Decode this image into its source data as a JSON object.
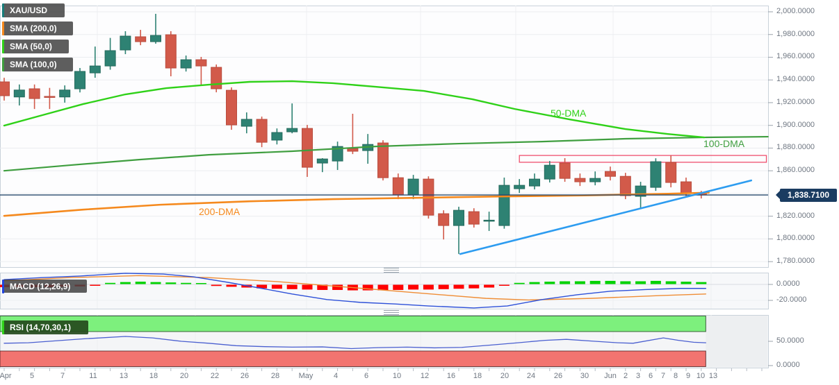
{
  "symbol": "XAU/USD",
  "legend": {
    "symbol_badge": "XAU/USD",
    "sma200_badge": "SMA (200,0)",
    "sma50_badge": "SMA (50,0)",
    "sma100_badge": "SMA (100,0)",
    "macd_badge": "MACD (12,26,9)",
    "rsi_badge": "RSI (14,70,30,1)"
  },
  "annotations": {
    "sma50_label": "50-DMA",
    "sma100_label": "100-DMA",
    "sma200_label": "200-DMA"
  },
  "price_badge": "1,838.7100",
  "colors": {
    "candle_up": "#2e8273",
    "candle_up_stroke": "#256a5d",
    "candle_down": "#d25a4a",
    "candle_down_stroke": "#b94c3e",
    "sma50": "#2fd118",
    "sma100": "#3f9e3f",
    "sma200": "#f5891d",
    "trendline": "#2d9cf0",
    "price_line": "#27496d",
    "zone": "#ef4f6d",
    "macd_line": "#2d50d8",
    "macd_signal": "#ef8d35",
    "hist_up": "#00d200",
    "hist_down": "#ff0000",
    "rsi_line": "#4a5fd0",
    "rsi_upper": "#7df07d",
    "rsi_lower": "#f27470"
  },
  "chart_data": {
    "type": "candlestick",
    "title": "XAU/USD daily candlestick chart with SMA(200,0), SMA(50,0), SMA(100,0) overlays, MACD(12,26,9) and RSI(14,70,30,1) panels",
    "price_axis": {
      "min": 1775.2,
      "max": 2005.5,
      "ticks": [
        {
          "v": 2000,
          "label": "2,000.0000"
        },
        {
          "v": 1980,
          "label": "1,980.0000"
        },
        {
          "v": 1960,
          "label": "1,960.0000"
        },
        {
          "v": 1940,
          "label": "1,940.0000"
        },
        {
          "v": 1920,
          "label": "1,920.0000"
        },
        {
          "v": 1900,
          "label": "1,900.0000"
        },
        {
          "v": 1880,
          "label": "1,880.0000"
        },
        {
          "v": 1860,
          "label": "1,860.0000"
        },
        {
          "v": 1840,
          "label": null
        },
        {
          "v": 1820,
          "label": "1,820.0000"
        },
        {
          "v": 1800,
          "label": "1,800.0000"
        },
        {
          "v": 1780,
          "label": "1,780.0000"
        }
      ],
      "current": 1838.71
    },
    "time_axis": {
      "labels": [
        "Apr",
        "5",
        "7",
        "11",
        "13",
        "18",
        "20",
        "22",
        "26",
        "28",
        "May",
        "4",
        "6",
        "10",
        "12",
        "16",
        "18",
        "20",
        "24",
        "26",
        "30",
        "Jun",
        "2",
        "3",
        "6",
        "7",
        "8",
        "9",
        "10",
        "13"
      ],
      "x": [
        8,
        46,
        90,
        134,
        178,
        221,
        265,
        309,
        352,
        396,
        440,
        483,
        527,
        571,
        611,
        649,
        687,
        726,
        764,
        803,
        841,
        878,
        900,
        918,
        936,
        954,
        972,
        990,
        1008,
        1026
      ]
    },
    "candles": [
      [
        1938.3,
        1941.9,
        1921.8,
        1926.1
      ],
      [
        1925.0,
        1936.0,
        1917.5,
        1931.1
      ],
      [
        1932.2,
        1936.0,
        1914.4,
        1923.6
      ],
      [
        1925.5,
        1933.0,
        1914.4,
        1924.9
      ],
      [
        1925.0,
        1935.2,
        1920.0,
        1931.1
      ],
      [
        1932.2,
        1950.5,
        1929.0,
        1947.5
      ],
      [
        1946.2,
        1969.4,
        1941.9,
        1952.3
      ],
      [
        1952.3,
        1977.0,
        1949.0,
        1965.8
      ],
      [
        1966.4,
        1982.9,
        1962.7,
        1978.6
      ],
      [
        1978.0,
        1984.1,
        1970.6,
        1973.7
      ],
      [
        1973.7,
        1998.2,
        1971.9,
        1979.2
      ],
      [
        1979.8,
        1982.9,
        1943.2,
        1950.5
      ],
      [
        1950.5,
        1961.5,
        1947.4,
        1957.8
      ],
      [
        1957.8,
        1960.3,
        1935.2,
        1952.3
      ],
      [
        1951.1,
        1953.6,
        1929.1,
        1932.2
      ],
      [
        1930.9,
        1933.4,
        1896.1,
        1900.4
      ],
      [
        1899.2,
        1911.4,
        1893.0,
        1905.3
      ],
      [
        1905.3,
        1907.7,
        1880.8,
        1885.1
      ],
      [
        1887.0,
        1897.3,
        1883.2,
        1893.7
      ],
      [
        1894.3,
        1919.3,
        1893.0,
        1897.3
      ],
      [
        1897.3,
        1900.4,
        1854.6,
        1863.1
      ],
      [
        1866.8,
        1871.1,
        1858.8,
        1870.4
      ],
      [
        1868.6,
        1885.7,
        1860.7,
        1881.4
      ],
      [
        1879.6,
        1910.2,
        1874.7,
        1877.2
      ],
      [
        1877.8,
        1892.4,
        1866.2,
        1883.2
      ],
      [
        1884.5,
        1886.9,
        1851.5,
        1853.9
      ],
      [
        1853.9,
        1857.6,
        1835.0,
        1838.7
      ],
      [
        1838.7,
        1856.4,
        1835.0,
        1852.7
      ],
      [
        1852.7,
        1855.1,
        1817.9,
        1820.9
      ],
      [
        1822.2,
        1825.2,
        1799.5,
        1811.8
      ],
      [
        1811.8,
        1828.3,
        1786.7,
        1825.2
      ],
      [
        1824.0,
        1827.0,
        1810.0,
        1813.0
      ],
      [
        1816.0,
        1824.0,
        1807.0,
        1816.5
      ],
      [
        1811.8,
        1854.0,
        1809.0,
        1847.2
      ],
      [
        1844.2,
        1852.7,
        1840.5,
        1847.2
      ],
      [
        1846.6,
        1857.6,
        1843.6,
        1852.7
      ],
      [
        1852.7,
        1868.6,
        1849.7,
        1864.9
      ],
      [
        1866.8,
        1871.1,
        1850.3,
        1853.3
      ],
      [
        1853.3,
        1857.6,
        1846.6,
        1850.3
      ],
      [
        1850.3,
        1859.4,
        1847.2,
        1853.3
      ],
      [
        1859.4,
        1863.7,
        1851.5,
        1855.1
      ],
      [
        1855.1,
        1858.2,
        1835.0,
        1838.1
      ],
      [
        1837.5,
        1850.3,
        1827.1,
        1846.6
      ],
      [
        1845.4,
        1871.0,
        1842.3,
        1868.0
      ],
      [
        1867.4,
        1873.5,
        1845.4,
        1849.7
      ],
      [
        1850.3,
        1854.0,
        1837.5,
        1840.5
      ],
      [
        1840.5,
        1842.3,
        1835.6,
        1838.7
      ]
    ],
    "overlays": {
      "sma50": [
        [
          0,
          1899.8
        ],
        [
          2.5,
          1908.9
        ],
        [
          5.2,
          1918.7
        ],
        [
          8,
          1927.3
        ],
        [
          10.7,
          1932.8
        ],
        [
          13.5,
          1935.8
        ],
        [
          16.2,
          1938.3
        ],
        [
          19,
          1938.9
        ],
        [
          21.7,
          1937.1
        ],
        [
          24.5,
          1934.0
        ],
        [
          27.7,
          1930.3
        ],
        [
          30.9,
          1923.0
        ],
        [
          33.7,
          1914.4
        ],
        [
          37.3,
          1905.3
        ],
        [
          41,
          1896.7
        ],
        [
          43.8,
          1892.4
        ],
        [
          46.2,
          1889.4
        ]
      ],
      "sma100": [
        [
          0,
          1860.0
        ],
        [
          4.3,
          1864.9
        ],
        [
          8.9,
          1869.8
        ],
        [
          13.5,
          1874.1
        ],
        [
          19,
          1877.2
        ],
        [
          24.5,
          1881.4
        ],
        [
          30,
          1883.9
        ],
        [
          35.5,
          1885.7
        ],
        [
          41,
          1888.2
        ],
        [
          46.2,
          1889.4
        ],
        [
          50.4,
          1890.0
        ]
      ],
      "sma200": [
        [
          0,
          1820.3
        ],
        [
          5.2,
          1825.8
        ],
        [
          10.3,
          1830.1
        ],
        [
          16.2,
          1833.1
        ],
        [
          21.7,
          1835.0
        ],
        [
          27.2,
          1836.2
        ],
        [
          32.8,
          1837.4
        ],
        [
          38.3,
          1838.3
        ],
        [
          43.8,
          1839.8
        ],
        [
          46.5,
          1840.7
        ]
      ],
      "trendline": [
        [
          30.1,
          1786.7
        ],
        [
          49.3,
          1851.5
        ]
      ]
    },
    "horizontal_line": 1838.71,
    "resistance_zone": {
      "start_index": 34,
      "end_index": 50.3,
      "top": 1873.5,
      "bottom": 1867.5
    },
    "macd": {
      "params": "12,26,9",
      "axis_ticks": [
        {
          "v": 0,
          "label": "0.0000"
        },
        {
          "v": -20,
          "label": "-20.0000"
        }
      ],
      "macd_line": [
        [
          0,
          6
        ],
        [
          2.5,
          8.5
        ],
        [
          5,
          10.5
        ],
        [
          8,
          14
        ],
        [
          10.5,
          13
        ],
        [
          12.5,
          9.5
        ],
        [
          14.8,
          2.5
        ],
        [
          17,
          -5
        ],
        [
          19,
          -12
        ],
        [
          21.3,
          -19
        ],
        [
          23.5,
          -22.5
        ],
        [
          25.8,
          -24.5
        ],
        [
          28,
          -27
        ],
        [
          31,
          -29.5
        ],
        [
          33.2,
          -27
        ],
        [
          35.5,
          -19
        ],
        [
          37.8,
          -13
        ],
        [
          40,
          -8.5
        ],
        [
          42.3,
          -6.5
        ],
        [
          44.6,
          -5
        ],
        [
          46.3,
          -5
        ]
      ],
      "signal_line": [
        [
          0,
          4.5
        ],
        [
          4.3,
          8.5
        ],
        [
          8.9,
          11
        ],
        [
          13.5,
          8.5
        ],
        [
          18,
          3.5
        ],
        [
          22.7,
          -3.5
        ],
        [
          27.2,
          -10.5
        ],
        [
          31.8,
          -17.5
        ],
        [
          34.6,
          -19.5
        ],
        [
          38.7,
          -17.5
        ],
        [
          43.3,
          -14
        ],
        [
          46.3,
          -12
        ]
      ],
      "histogram": [
        -3,
        -3,
        -3,
        -3,
        -2.5,
        -2,
        -1,
        1.5,
        2.5,
        3,
        2.5,
        2,
        1.5,
        0,
        -1.5,
        -2.5,
        -3.5,
        -4.5,
        -5,
        -5.5,
        -6,
        -6.5,
        -6.5,
        -7,
        -7,
        -7,
        -6.5,
        -6,
        -6,
        -5.5,
        -5,
        -4.5,
        -3.5,
        -0.3,
        1.5,
        2.5,
        3,
        3.5,
        3.5,
        4,
        4,
        3.5,
        3.5,
        4,
        3.5,
        3,
        2.5
      ]
    },
    "rsi": {
      "params": "14,70,30,1",
      "axis_ticks": [
        {
          "v": 50,
          "label": "50.0000"
        },
        {
          "v": 0,
          "label": "0.0000"
        }
      ],
      "upper_band": [
        70,
        104
      ],
      "lower_band": [
        0,
        30
      ],
      "line": [
        [
          0,
          46
        ],
        [
          1.6,
          47
        ],
        [
          5.2,
          55
        ],
        [
          8,
          60
        ],
        [
          9.8,
          57
        ],
        [
          11.7,
          50
        ],
        [
          13.5,
          46
        ],
        [
          15.3,
          41
        ],
        [
          17.2,
          39
        ],
        [
          19,
          38
        ],
        [
          21,
          38.5
        ],
        [
          22.9,
          35
        ],
        [
          24.7,
          37
        ],
        [
          26.6,
          38
        ],
        [
          28.4,
          36.5
        ],
        [
          30.2,
          37.5
        ],
        [
          32,
          42
        ],
        [
          33.9,
          47
        ],
        [
          35.7,
          52
        ],
        [
          37.1,
          54
        ],
        [
          39,
          50
        ],
        [
          40.5,
          47
        ],
        [
          41.5,
          46
        ],
        [
          43.5,
          57
        ],
        [
          44.5,
          52
        ],
        [
          45.5,
          48
        ],
        [
          46.3,
          47
        ]
      ]
    }
  }
}
